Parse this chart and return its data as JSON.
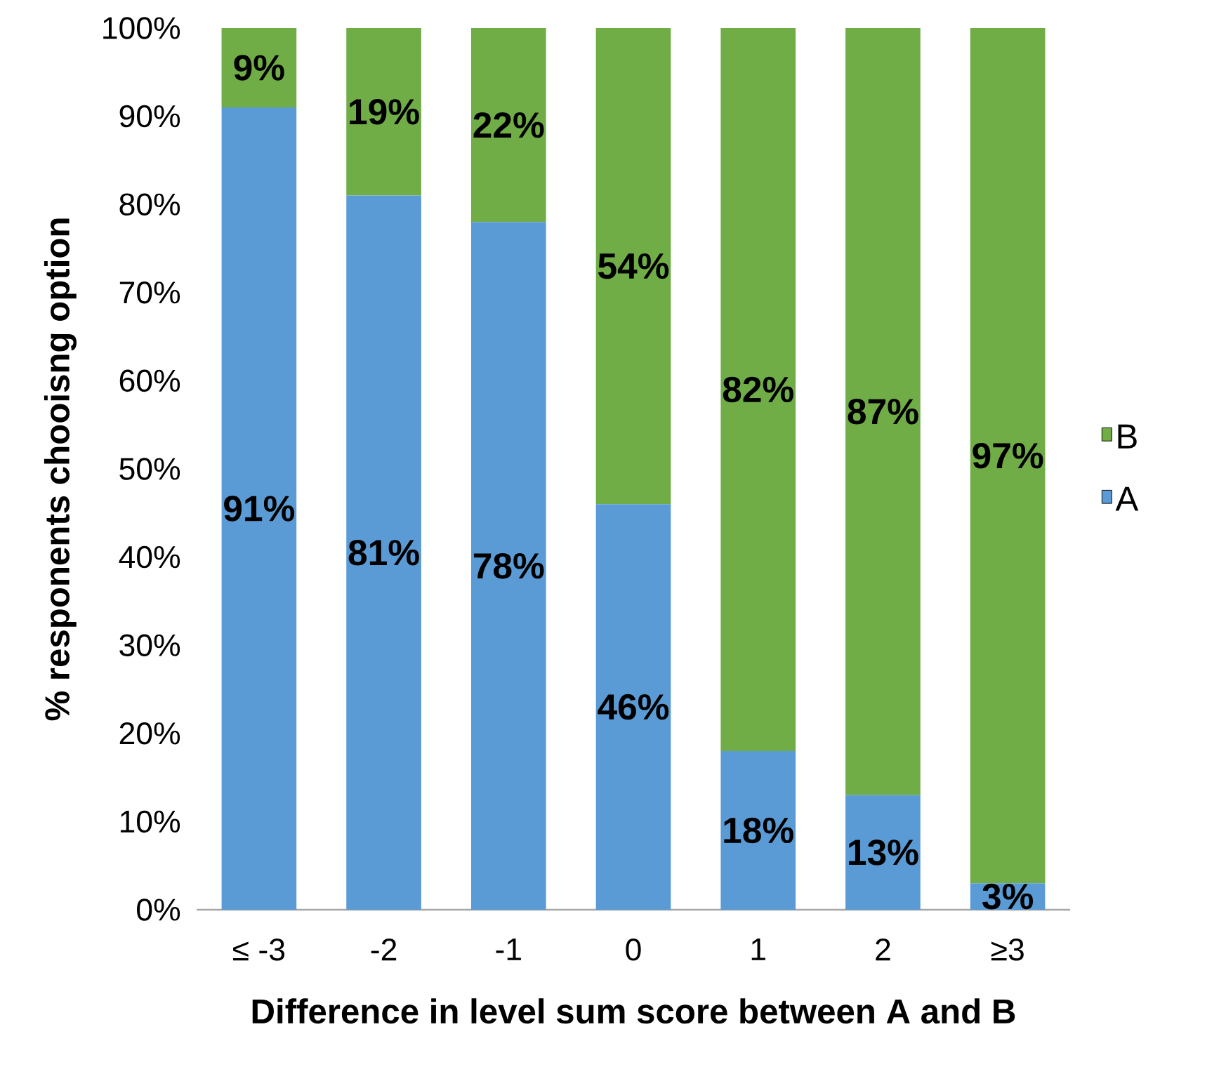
{
  "chart_data": {
    "type": "bar",
    "stacked": true,
    "xlabel": "Difference in level sum score between A and B",
    "ylabel": "% responents chooisng option",
    "categories": [
      "≤ -3",
      "-2",
      "-1",
      "0",
      "1",
      "2",
      "≥3"
    ],
    "series": [
      {
        "name": "A",
        "color": "#5b9bd5",
        "values": [
          91,
          81,
          78,
          46,
          18,
          13,
          3
        ],
        "value_labels": [
          "91%",
          "81%",
          "78%",
          "46%",
          "18%",
          "13%",
          "3%"
        ]
      },
      {
        "name": "B",
        "color": "#70ad47",
        "values": [
          9,
          19,
          22,
          54,
          82,
          87,
          97
        ],
        "value_labels": [
          "9%",
          "19%",
          "22%",
          "54%",
          "82%",
          "87%",
          "97%"
        ]
      }
    ],
    "ylim": [
      0,
      100
    ],
    "yticks": [
      {
        "value": 0,
        "label": "0%"
      },
      {
        "value": 10,
        "label": "10%"
      },
      {
        "value": 20,
        "label": "20%"
      },
      {
        "value": 30,
        "label": "30%"
      },
      {
        "value": 40,
        "label": "40%"
      },
      {
        "value": 50,
        "label": "50%"
      },
      {
        "value": 60,
        "label": "60%"
      },
      {
        "value": 70,
        "label": "70%"
      },
      {
        "value": 80,
        "label": "80%"
      },
      {
        "value": 90,
        "label": "90%"
      },
      {
        "value": 100,
        "label": "100%"
      }
    ],
    "legend": "right",
    "grid": false
  }
}
